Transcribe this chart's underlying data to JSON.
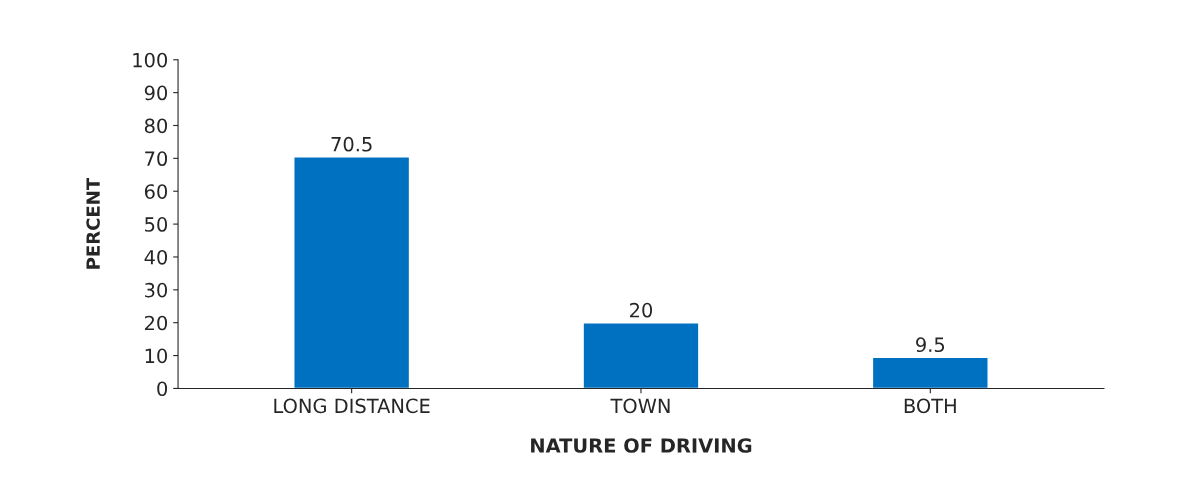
{
  "chart_data": {
    "type": "bar",
    "xlabel": "NATURE OF DRIVING",
    "ylabel": "PERCENT",
    "categories": [
      "LONG DISTANCE",
      "TOWN",
      "BOTH"
    ],
    "values": [
      70.5,
      20,
      9.5
    ],
    "color": "#0070c0",
    "ylim": [
      0,
      100
    ],
    "yticks": [
      0,
      10,
      20,
      30,
      40,
      50,
      60,
      70,
      80,
      90,
      100
    ],
    "data_labels": true,
    "grid": false
  }
}
